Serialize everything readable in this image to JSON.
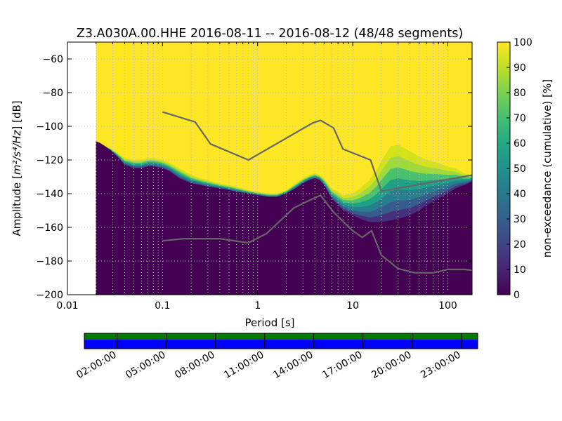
{
  "chart_data": {
    "type": "heatmap",
    "title": "Z3.A030A.00.HHE   2016-08-11 -- 2016-08-12  (48/48 segments)",
    "xlabel": "Period [s]",
    "ylabel_prefix": "Amplitude [",
    "ylabel_math": "m²/s⁴/Hz",
    "ylabel_suffix": "] [dB]",
    "xscale": "log",
    "xlim": [
      0.01,
      180
    ],
    "ylim": [
      -200,
      -50
    ],
    "xticks": [
      {
        "value": 0.01,
        "label": "0.01"
      },
      {
        "value": 0.1,
        "label": "0.1"
      },
      {
        "value": 1,
        "label": "1"
      },
      {
        "value": 10,
        "label": "10"
      },
      {
        "value": 100,
        "label": "100"
      }
    ],
    "yticks": [
      {
        "value": -60,
        "label": "−60"
      },
      {
        "value": -80,
        "label": "−80"
      },
      {
        "value": -100,
        "label": "−100"
      },
      {
        "value": -120,
        "label": "−120"
      },
      {
        "value": -140,
        "label": "−140"
      },
      {
        "value": -160,
        "label": "−160"
      },
      {
        "value": -180,
        "label": "−180"
      },
      {
        "value": -200,
        "label": "−200"
      }
    ],
    "grid": true,
    "data_period_start": 0.02,
    "colorbar": {
      "label": "non-exceedance (cumulative) [%]",
      "range": [
        0,
        100
      ],
      "ticks": [
        0,
        10,
        20,
        30,
        40,
        50,
        60,
        70,
        80,
        90,
        100
      ],
      "colormap": "viridis"
    },
    "psd_bands": {
      "period": [
        0.02,
        0.022,
        0.025,
        0.028,
        0.032,
        0.036,
        0.04,
        0.05,
        0.06,
        0.07,
        0.08,
        0.1,
        0.12,
        0.15,
        0.2,
        0.25,
        0.3,
        0.4,
        0.5,
        0.6,
        0.8,
        1.0,
        1.3,
        1.6,
        2.0,
        2.5,
        3.0,
        3.5,
        4.0,
        4.5,
        5.0,
        5.5,
        6.0,
        7.0,
        8.0,
        10,
        12,
        15,
        18,
        20,
        25,
        30,
        40,
        50,
        60,
        80,
        100,
        120,
        150,
        180
      ],
      "low": [
        -109,
        -110,
        -112,
        -114,
        -117,
        -120,
        -123,
        -125,
        -125,
        -124,
        -124,
        -125,
        -127,
        -131,
        -134,
        -135,
        -136,
        -137,
        -138,
        -139,
        -140,
        -141,
        -142,
        -142,
        -140,
        -137,
        -134,
        -132,
        -131,
        -132,
        -135,
        -139,
        -143,
        -147,
        -150,
        -153,
        -155,
        -157,
        -157,
        -157,
        -156,
        -155,
        -153,
        -150,
        -147,
        -143,
        -140,
        -137,
        -135,
        -133
      ],
      "high": [
        -109,
        -110,
        -112,
        -113,
        -115,
        -117,
        -119,
        -120,
        -120,
        -119,
        -119,
        -120,
        -122,
        -125,
        -129,
        -131,
        -132,
        -134,
        -135,
        -136,
        -138,
        -139,
        -140,
        -140,
        -138,
        -134,
        -131,
        -129,
        -128,
        -129,
        -131,
        -134,
        -137,
        -139,
        -141,
        -140,
        -137,
        -132,
        -126,
        -121,
        -112,
        -111,
        -115,
        -118,
        -120,
        -122,
        -124,
        -125,
        -128,
        -129
      ]
    },
    "reference_curves": [
      {
        "role": "upper",
        "color": "#666666",
        "points": [
          [
            0.1,
            -91.5
          ],
          [
            0.22,
            -97.4
          ],
          [
            0.32,
            -110.5
          ],
          [
            0.8,
            -120.0
          ],
          [
            3.8,
            -98.0
          ],
          [
            4.6,
            -96.5
          ],
          [
            6.3,
            -101.0
          ],
          [
            7.9,
            -113.5
          ],
          [
            15.4,
            -120.0
          ],
          [
            20,
            -138.5
          ],
          [
            180,
            -129.0
          ]
        ]
      },
      {
        "role": "lower",
        "color": "#666666",
        "points": [
          [
            0.1,
            -168.0
          ],
          [
            0.17,
            -166.7
          ],
          [
            0.4,
            -166.7
          ],
          [
            0.8,
            -169.2
          ],
          [
            1.24,
            -163.7
          ],
          [
            2.4,
            -148.5
          ],
          [
            3.8,
            -143.0
          ],
          [
            4.6,
            -141.0
          ],
          [
            6.3,
            -151.0
          ],
          [
            10,
            -162.0
          ],
          [
            12.6,
            -166.0
          ],
          [
            15.8,
            -162.0
          ],
          [
            20,
            -176.5
          ],
          [
            30,
            -184.5
          ],
          [
            45,
            -187.0
          ],
          [
            70,
            -187.0
          ],
          [
            100,
            -185.0
          ],
          [
            150,
            -185.0
          ],
          [
            180,
            -185.4
          ]
        ]
      }
    ],
    "timeline": {
      "ticks": [
        "02:00:00",
        "05:00:00",
        "08:00:00",
        "11:00:00",
        "14:00:00",
        "17:00:00",
        "20:00:00",
        "23:00:00"
      ],
      "top_bar_color": "#007b00",
      "bottom_bar_color": "#0000ff"
    },
    "colors": {
      "above": "#fde725",
      "below": "#440154",
      "curve": "#666666"
    }
  }
}
